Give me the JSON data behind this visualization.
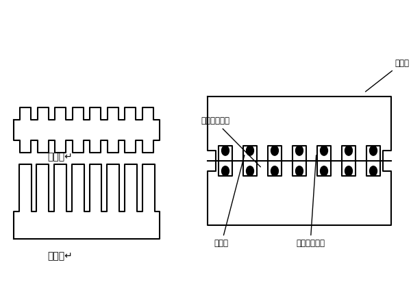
{
  "bg_color": "#ffffff",
  "line_color": "#000000",
  "label_color": "#000000",
  "title": "",
  "labels": {
    "double_tooth": "双齿板↵",
    "single_tooth": "单齿板↵",
    "single_board": "单枕板",
    "double_board": "双枕板",
    "top_upper": "顶板上层钉筋",
    "top_lower": "顶板底层钉筋"
  }
}
